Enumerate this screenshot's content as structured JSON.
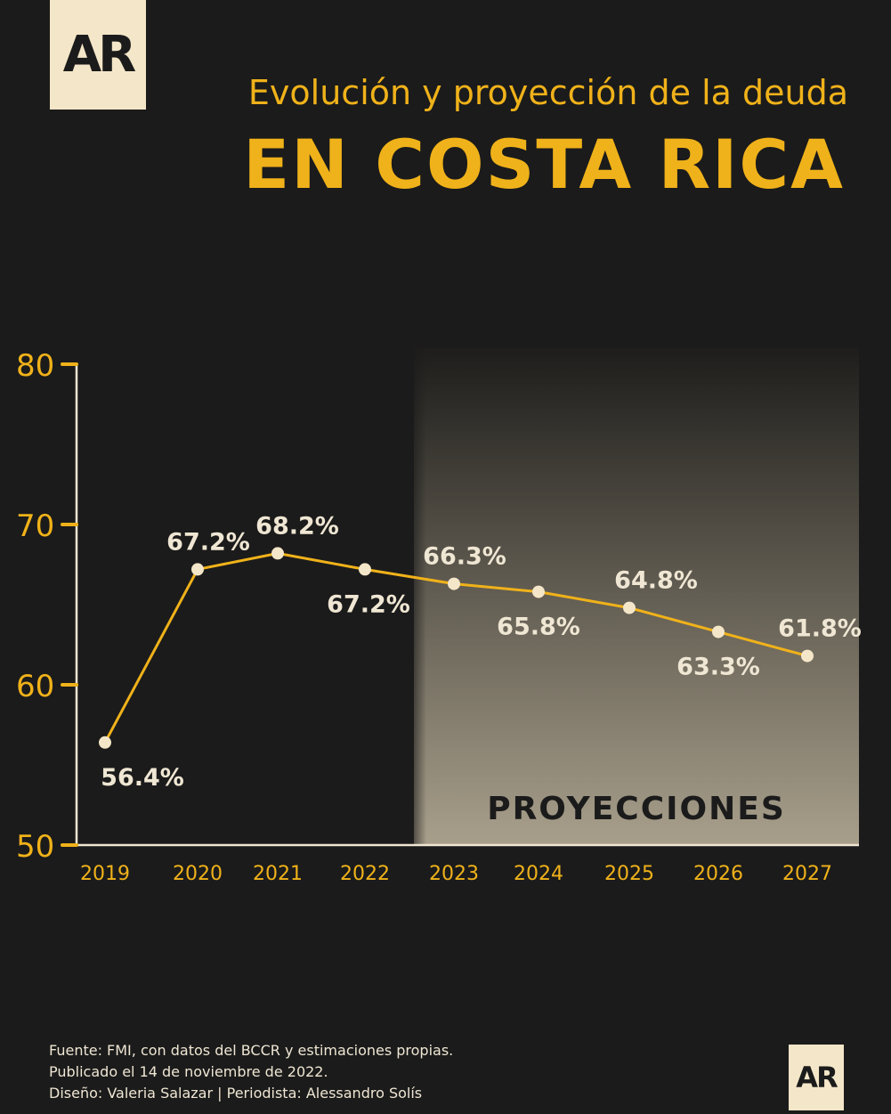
{
  "brand": {
    "logo_text": "AR"
  },
  "header": {
    "subtitle": "Evolución y proyección de la deuda",
    "title": "EN COSTA RICA"
  },
  "colors": {
    "background": "#1b1b1b",
    "accent": "#f0b21a",
    "point": "#f4e6c8",
    "label": "#efe6d3"
  },
  "chart_data": {
    "type": "line",
    "x": [
      "2019",
      "2020",
      "2021",
      "2022",
      "2023",
      "2024",
      "2025",
      "2026",
      "2027"
    ],
    "series": [
      {
        "values": [
          56.4,
          67.2,
          68.2,
          67.2,
          66.3,
          65.8,
          64.8,
          63.3,
          61.8
        ]
      }
    ],
    "data_labels": [
      "56.4%",
      "67.2%",
      "68.2%",
      "67.2%",
      "66.3%",
      "65.8%",
      "64.8%",
      "63.3%",
      "61.8%"
    ],
    "y_ticks": [
      "50",
      "60",
      "70",
      "80"
    ],
    "ylim": [
      50,
      80
    ],
    "projection_from": "2023",
    "projection_label": "PROYECCIONES",
    "grid": false
  },
  "footer": {
    "source": "Fuente: FMI, con datos del BCCR y estimaciones propias.",
    "published": "Publicado el 14 de noviembre de 2022.",
    "credits": "Diseño: Valeria Salazar | Periodista: Alessandro Solís"
  }
}
